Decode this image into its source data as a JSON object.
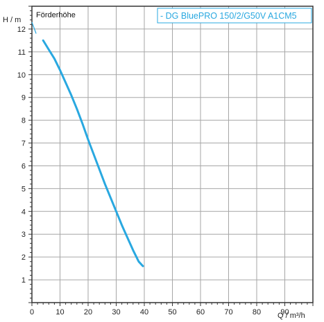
{
  "chart_data": {
    "type": "line",
    "title": "Förderhöhe",
    "ylabel": "H / m",
    "xlabel": "Q / m³/h",
    "xlim": [
      0,
      100
    ],
    "ylim": [
      0,
      13
    ],
    "x_ticks": [
      "0",
      "10",
      "20",
      "30",
      "40",
      "50",
      "60",
      "70",
      "80",
      "90"
    ],
    "y_ticks": [
      "1",
      "2",
      "3",
      "4",
      "5",
      "6",
      "7",
      "8",
      "9",
      "10",
      "11",
      "12"
    ],
    "grid": true,
    "legend_position": "top-right",
    "series": [
      {
        "name": "- DG BluePRO 150/2/G50V A1CM5",
        "color": "#29a8e0",
        "x": [
          0,
          1.5,
          4,
          6,
          8,
          10,
          12,
          14,
          16,
          18,
          20,
          22,
          24,
          26,
          28,
          30,
          32,
          34,
          36,
          38,
          39.5
        ],
        "y": [
          12.3,
          11.8,
          11.5,
          11.1,
          10.7,
          10.2,
          9.65,
          9.1,
          8.5,
          7.85,
          7.15,
          6.5,
          5.85,
          5.2,
          4.6,
          4.0,
          3.4,
          2.85,
          2.3,
          1.8,
          1.6
        ]
      }
    ]
  }
}
